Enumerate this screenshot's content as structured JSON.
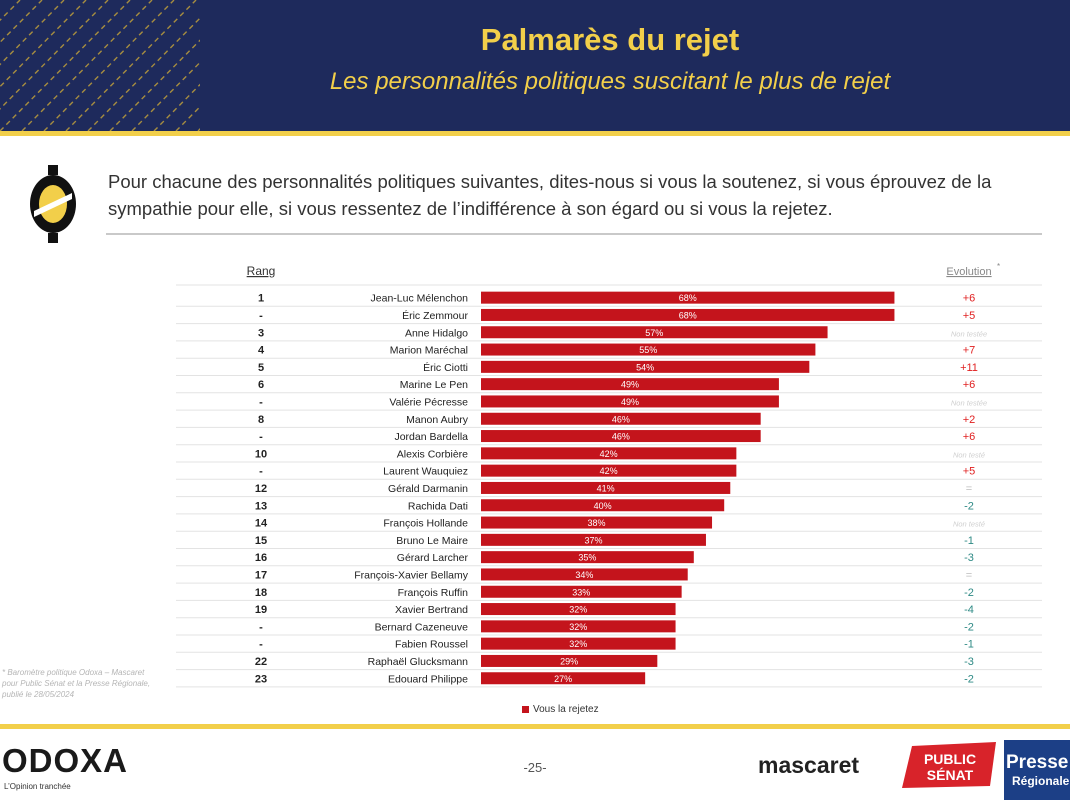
{
  "header": {
    "title": "Palmarès du rejet",
    "subtitle": "Les personnalités politiques suscitant le plus de rejet"
  },
  "question": "Pour chacune des personnalités politiques suivantes, dites-nous si vous la soutenez, si vous éprouvez de la sympathie pour elle, si vous ressentez de l’indifférence à son égard ou si vous la rejetez.",
  "colors": {
    "navy": "#1e2a5c",
    "gold": "#f2cf4a",
    "bar": "#c4141c",
    "positive": "#e02020",
    "negative": "#2e8a85",
    "neutral": "#bdbdbd"
  },
  "chart_data": {
    "type": "bar",
    "orientation": "horizontal",
    "rank_header": "Rang",
    "evolution_header": "Evolution",
    "evolution_header_mark": "*",
    "xlim": [
      0,
      100
    ],
    "value_suffix": "%",
    "series": [
      {
        "name": "Vous la rejetez"
      }
    ],
    "rows": [
      {
        "rank": "1",
        "name": "Jean-Luc Mélenchon",
        "value": 68,
        "evolution": "+6",
        "trend": "up"
      },
      {
        "rank": "-",
        "name": "Éric Zemmour",
        "value": 68,
        "evolution": "+5",
        "trend": "up"
      },
      {
        "rank": "3",
        "name": "Anne Hidalgo",
        "value": 57,
        "evolution": "Non testée",
        "trend": "na"
      },
      {
        "rank": "4",
        "name": "Marion Maréchal",
        "value": 55,
        "evolution": "+7",
        "trend": "up"
      },
      {
        "rank": "5",
        "name": "Éric Ciotti",
        "value": 54,
        "evolution": "+11",
        "trend": "up"
      },
      {
        "rank": "6",
        "name": "Marine Le Pen",
        "value": 49,
        "evolution": "+6",
        "trend": "up"
      },
      {
        "rank": "-",
        "name": "Valérie Pécresse",
        "value": 49,
        "evolution": "Non testée",
        "trend": "na"
      },
      {
        "rank": "8",
        "name": "Manon Aubry",
        "value": 46,
        "evolution": "+2",
        "trend": "up"
      },
      {
        "rank": "-",
        "name": "Jordan Bardella",
        "value": 46,
        "evolution": "+6",
        "trend": "up"
      },
      {
        "rank": "10",
        "name": "Alexis Corbière",
        "value": 42,
        "evolution": "Non testé",
        "trend": "na"
      },
      {
        "rank": "-",
        "name": "Laurent Wauquiez",
        "value": 42,
        "evolution": "+5",
        "trend": "up"
      },
      {
        "rank": "12",
        "name": "Gérald Darmanin",
        "value": 41,
        "evolution": "=",
        "trend": "na"
      },
      {
        "rank": "13",
        "name": "Rachida Dati",
        "value": 40,
        "evolution": "-2",
        "trend": "down"
      },
      {
        "rank": "14",
        "name": "François Hollande",
        "value": 38,
        "evolution": "Non testé",
        "trend": "na"
      },
      {
        "rank": "15",
        "name": "Bruno Le Maire",
        "value": 37,
        "evolution": "-1",
        "trend": "down"
      },
      {
        "rank": "16",
        "name": "Gérard Larcher",
        "value": 35,
        "evolution": "-3",
        "trend": "down"
      },
      {
        "rank": "17",
        "name": "François-Xavier Bellamy",
        "value": 34,
        "evolution": "=",
        "trend": "na"
      },
      {
        "rank": "18",
        "name": "François Ruffin",
        "value": 33,
        "evolution": "-2",
        "trend": "down"
      },
      {
        "rank": "19",
        "name": "Xavier Bertrand",
        "value": 32,
        "evolution": "-4",
        "trend": "down"
      },
      {
        "rank": "-",
        "name": "Bernard Cazeneuve",
        "value": 32,
        "evolution": "-2",
        "trend": "down"
      },
      {
        "rank": "-",
        "name": "Fabien Roussel",
        "value": 32,
        "evolution": "-1",
        "trend": "down"
      },
      {
        "rank": "22",
        "name": "Raphaël Glucksmann",
        "value": 29,
        "evolution": "-3",
        "trend": "down"
      },
      {
        "rank": "23",
        "name": "Edouard Philippe",
        "value": 27,
        "evolution": "-2",
        "trend": "down"
      }
    ]
  },
  "footnote": "* Baromètre politique Odoxa – Mascaret pour Public Sénat et la Presse Régionale, publié le 28/05/2024",
  "legend_label": "Vous la rejetez",
  "footer": {
    "brand": "ODOXA",
    "tagline": "L’Opinion tranchée",
    "page_number": "-25-",
    "partner1": "mascaret",
    "partner2_line1": "PUBLIC",
    "partner2_line2": "SÉNAT",
    "partner3_line1": "Presse",
    "partner3_line2": "Régionale"
  }
}
